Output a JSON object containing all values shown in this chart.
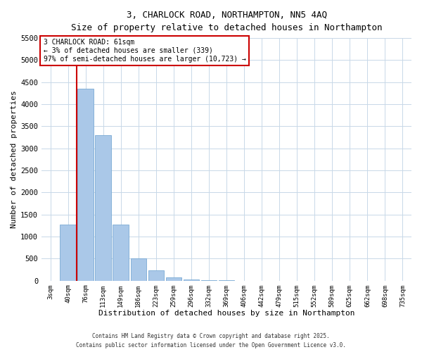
{
  "title": "3, CHARLOCK ROAD, NORTHAMPTON, NN5 4AQ",
  "subtitle": "Size of property relative to detached houses in Northampton",
  "xlabel": "Distribution of detached houses by size in Northampton",
  "ylabel": "Number of detached properties",
  "bar_labels": [
    "3sqm",
    "40sqm",
    "76sqm",
    "113sqm",
    "149sqm",
    "186sqm",
    "223sqm",
    "259sqm",
    "296sqm",
    "332sqm",
    "369sqm",
    "406sqm",
    "442sqm",
    "479sqm",
    "515sqm",
    "552sqm",
    "589sqm",
    "625sqm",
    "662sqm",
    "698sqm",
    "735sqm"
  ],
  "bar_values": [
    0,
    1270,
    4350,
    3300,
    1280,
    500,
    240,
    80,
    30,
    10,
    5,
    2,
    0,
    0,
    0,
    0,
    0,
    0,
    0,
    0,
    0
  ],
  "bar_color": "#aac8e8",
  "bar_edge_color": "#7aaad4",
  "vline_color": "#cc0000",
  "annotation_text": "3 CHARLOCK ROAD: 61sqm\n← 3% of detached houses are smaller (339)\n97% of semi-detached houses are larger (10,723) →",
  "annotation_box_color": "#ffffff",
  "annotation_box_edge_color": "#cc0000",
  "ylim": [
    0,
    5500
  ],
  "yticks": [
    0,
    500,
    1000,
    1500,
    2000,
    2500,
    3000,
    3500,
    4000,
    4500,
    5000,
    5500
  ],
  "background_color": "#ffffff",
  "grid_color": "#c8d8e8",
  "footer_line1": "Contains HM Land Registry data © Crown copyright and database right 2025.",
  "footer_line2": "Contains public sector information licensed under the Open Government Licence v3.0."
}
